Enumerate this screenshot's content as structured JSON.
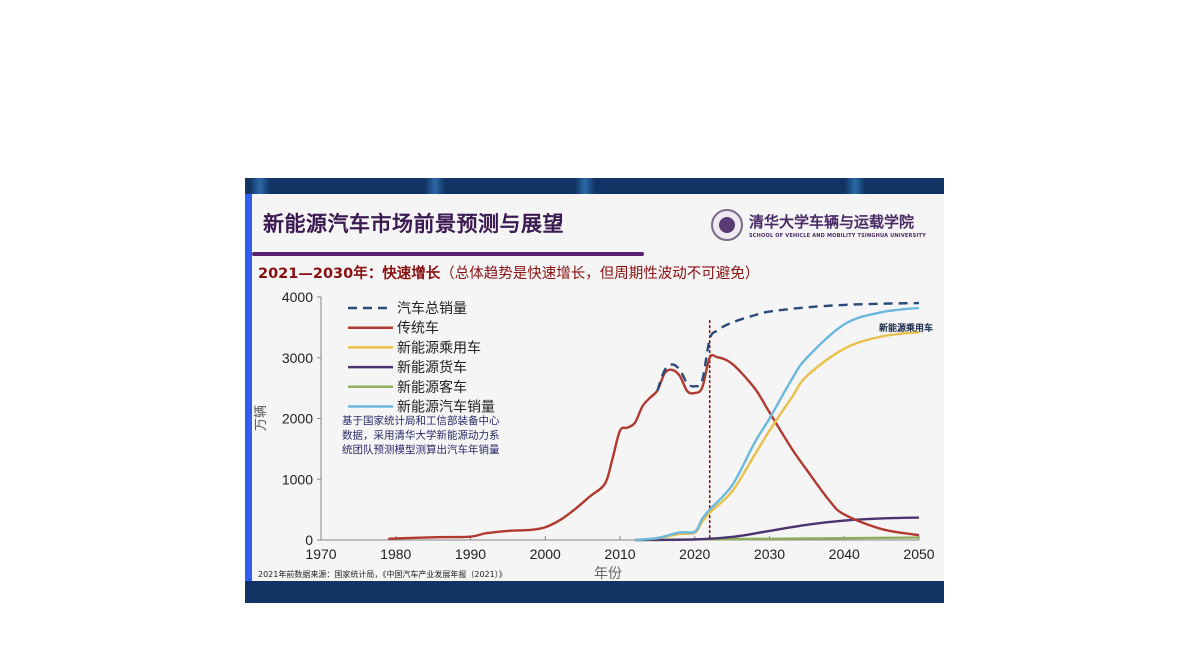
{
  "slide": {
    "title": "新能源汽车市场前景预测与展望",
    "logo": {
      "name_cn": "清华大学车辆与运载学院",
      "name_en": "SCHOOL OF VEHICLE AND MOBILITY TSINGHUA UNIVERSITY"
    },
    "subtitle_bold": "2021—2030年：快速增长",
    "subtitle_rest": "（总体趋势是快速增长，但周期性波动不可避免）",
    "note": [
      "基于国家统计局和工信部装备中心",
      "数据，采用清华大学新能源动力系",
      "统团队预测模型测算出汽车年销量"
    ],
    "source": "2021年前数据来源：国家统计局，《中国汽车产业发展年报（2021）》",
    "curve_label": "新能源乘用车"
  },
  "colors": {
    "total": "#2b4a7a",
    "traditional": "#b03a30",
    "nev_passenger": "#e8c04a",
    "nev_truck": "#4a3570",
    "nev_bus": "#8fae5a",
    "nev_total": "#6ab8dc",
    "divider": "#8a0a0a"
  },
  "chart_data": {
    "type": "line",
    "title": "",
    "xlabel": "年份",
    "ylabel": "万辆",
    "xlim": [
      1970,
      2050
    ],
    "ylim": [
      0,
      4000
    ],
    "xticks": [
      1970,
      1980,
      1990,
      2000,
      2010,
      2020,
      2030,
      2040,
      2050
    ],
    "yticks": [
      0,
      1000,
      2000,
      3000,
      4000
    ],
    "legend": [
      "汽车总销量",
      "传统车",
      "新能源乘用车",
      "新能源货车",
      "新能源客车",
      "新能源汽车销量"
    ],
    "legend_position": "upper-left",
    "annotations": [
      {
        "text": "新能源乘用车",
        "x": 2046,
        "y": 3500
      },
      {
        "type": "vline",
        "x": 2022,
        "style": "dashed"
      }
    ],
    "series": [
      {
        "name": "汽车总销量",
        "style": "dashed",
        "x": [
          2015,
          2016,
          2017,
          2018,
          2019,
          2020,
          2021,
          2022,
          2023,
          2025,
          2028,
          2030,
          2035,
          2040,
          2045,
          2050
        ],
        "values": [
          2460,
          2800,
          2890,
          2800,
          2580,
          2530,
          2630,
          3300,
          3450,
          3580,
          3700,
          3760,
          3830,
          3870,
          3890,
          3900
        ]
      },
      {
        "name": "传统车",
        "x": [
          1979,
          1980,
          1985,
          1990,
          1992,
          1995,
          1998,
          2000,
          2002,
          2004,
          2006,
          2008,
          2009,
          2010,
          2011,
          2012,
          2013,
          2014,
          2015,
          2016,
          2017,
          2018,
          2019,
          2020,
          2021,
          2022,
          2023,
          2025,
          2028,
          2030,
          2033,
          2035,
          2038,
          2040,
          2045,
          2050
        ],
        "values": [
          20,
          25,
          45,
          55,
          110,
          150,
          165,
          210,
          330,
          510,
          720,
          930,
          1340,
          1800,
          1850,
          1930,
          2200,
          2340,
          2460,
          2750,
          2800,
          2700,
          2450,
          2420,
          2510,
          3000,
          3010,
          2900,
          2500,
          2100,
          1500,
          1150,
          650,
          420,
          180,
          80
        ]
      },
      {
        "name": "新能源乘用车",
        "x": [
          2012,
          2015,
          2018,
          2020,
          2021,
          2022,
          2025,
          2028,
          2030,
          2033,
          2035,
          2040,
          2045,
          2050
        ],
        "values": [
          0,
          30,
          100,
          120,
          300,
          450,
          800,
          1400,
          1800,
          2350,
          2700,
          3150,
          3350,
          3420
        ]
      },
      {
        "name": "新能源货车",
        "x": [
          2012,
          2020,
          2025,
          2030,
          2035,
          2040,
          2045,
          2050
        ],
        "values": [
          0,
          10,
          50,
          150,
          250,
          320,
          355,
          370
        ]
      },
      {
        "name": "新能源客车",
        "x": [
          2012,
          2020,
          2030,
          2040,
          2050
        ],
        "values": [
          0,
          10,
          20,
          30,
          40
        ]
      },
      {
        "name": "新能源汽车销量",
        "x": [
          2012,
          2015,
          2018,
          2020,
          2021,
          2022,
          2025,
          2028,
          2030,
          2033,
          2035,
          2040,
          2045,
          2050
        ],
        "values": [
          0,
          33,
          125,
          135,
          350,
          500,
          900,
          1600,
          2000,
          2650,
          3000,
          3550,
          3750,
          3820
        ]
      }
    ]
  }
}
